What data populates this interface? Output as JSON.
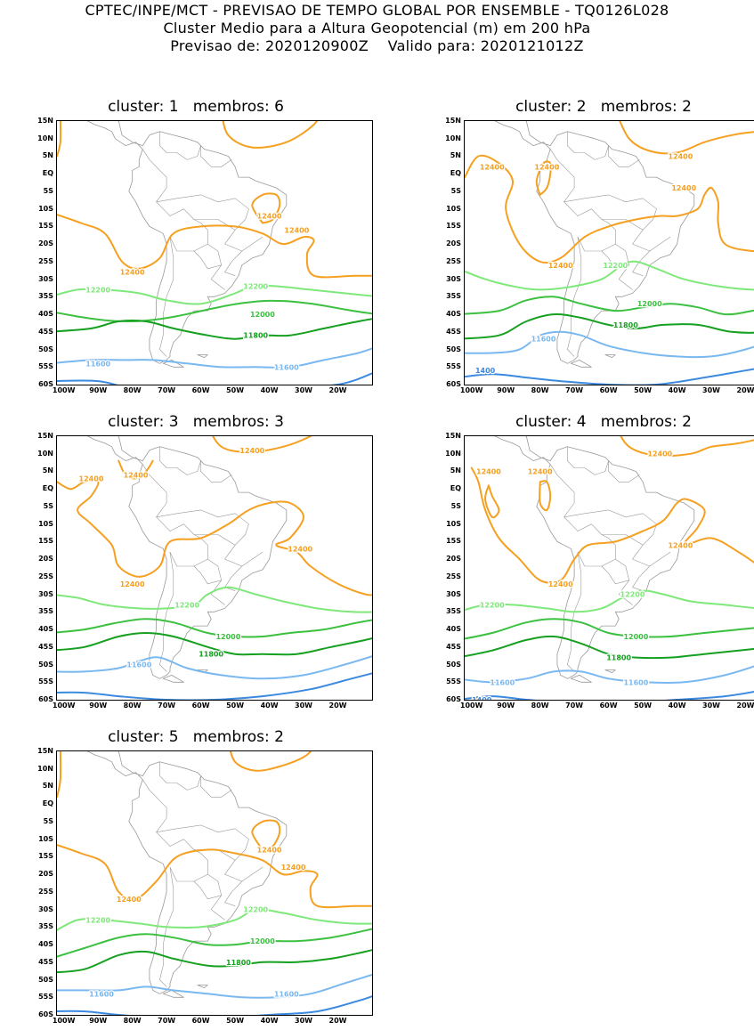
{
  "header": {
    "line1": "CPTEC/INPE/MCT - PREVISAO DE TEMPO GLOBAL POR ENSEMBLE - TQ0126L028",
    "line2": "Cluster Medio para a Altura Geopotencial (m) em 200 hPa",
    "line3": "Previsao de: 2020120900Z    Valido para: 2020121012Z"
  },
  "axes": {
    "lat_labels": [
      "15N",
      "10N",
      "5N",
      "EQ",
      "5S",
      "10S",
      "15S",
      "20S",
      "25S",
      "30S",
      "35S",
      "40S",
      "45S",
      "50S",
      "55S",
      "60S"
    ],
    "lon_labels": [
      "100W",
      "90W",
      "80W",
      "70W",
      "60W",
      "50W",
      "40W",
      "30W",
      "20W"
    ]
  },
  "colors": {
    "c12400": "#f5a020",
    "c12200": "#7fe87a",
    "c12000": "#3cc040",
    "c11800": "#16a020",
    "c11600": "#7ab8f0",
    "c11400": "#3c8ae0",
    "c11200": "#1a5ad0",
    "coast": "#999999"
  },
  "panels": [
    {
      "title": "cluster: 1   membros: 6",
      "labels": [
        {
          "text": "12400",
          "lon": -40,
          "lat": -12
        },
        {
          "text": "12400",
          "lon": -32,
          "lat": -16
        },
        {
          "text": "12400",
          "lon": -80,
          "lat": -28
        },
        {
          "text": "12200",
          "lon": -90,
          "lat": -33
        },
        {
          "text": "12200",
          "lon": -44,
          "lat": -32
        },
        {
          "text": "12000",
          "lon": -42,
          "lat": -40
        },
        {
          "text": "11800",
          "lon": -44,
          "lat": -46
        },
        {
          "text": "11600",
          "lon": -90,
          "lat": -54
        },
        {
          "text": "11600",
          "lon": -35,
          "lat": -55
        }
      ]
    },
    {
      "title": "cluster: 2   membros: 2",
      "labels": [
        {
          "text": "12400",
          "lon": -94,
          "lat": 2
        },
        {
          "text": "12400",
          "lon": -78,
          "lat": 2
        },
        {
          "text": "12400",
          "lon": -39,
          "lat": 5
        },
        {
          "text": "12400",
          "lon": -38,
          "lat": -4
        },
        {
          "text": "12400",
          "lon": -74,
          "lat": -26
        },
        {
          "text": "12200",
          "lon": -58,
          "lat": -26
        },
        {
          "text": "12000",
          "lon": -48,
          "lat": -37
        },
        {
          "text": "11800",
          "lon": -55,
          "lat": -43
        },
        {
          "text": "11600",
          "lon": -79,
          "lat": -47
        },
        {
          "text": "1400",
          "lon": -96,
          "lat": -56
        }
      ]
    },
    {
      "title": "cluster: 3   membros: 3",
      "labels": [
        {
          "text": "12400",
          "lon": -45,
          "lat": 11
        },
        {
          "text": "12400",
          "lon": -92,
          "lat": 3
        },
        {
          "text": "12400",
          "lon": -79,
          "lat": 4
        },
        {
          "text": "12400",
          "lon": -31,
          "lat": -17
        },
        {
          "text": "12400",
          "lon": -80,
          "lat": -27
        },
        {
          "text": "12200",
          "lon": -64,
          "lat": -33
        },
        {
          "text": "12000",
          "lon": -52,
          "lat": -42
        },
        {
          "text": "11800",
          "lon": -57,
          "lat": -47
        },
        {
          "text": "11600",
          "lon": -78,
          "lat": -50
        }
      ]
    },
    {
      "title": "cluster: 4   membros: 2",
      "labels": [
        {
          "text": "12400",
          "lon": -45,
          "lat": 10
        },
        {
          "text": "12400",
          "lon": -95,
          "lat": 5
        },
        {
          "text": "12400",
          "lon": -80,
          "lat": 5
        },
        {
          "text": "12400",
          "lon": -39,
          "lat": -16
        },
        {
          "text": "12400",
          "lon": -74,
          "lat": -27
        },
        {
          "text": "12200",
          "lon": -94,
          "lat": -33
        },
        {
          "text": "12200",
          "lon": -53,
          "lat": -30
        },
        {
          "text": "12000",
          "lon": -52,
          "lat": -42
        },
        {
          "text": "11800",
          "lon": -57,
          "lat": -48
        },
        {
          "text": "11600",
          "lon": -91,
          "lat": -55
        },
        {
          "text": "11600",
          "lon": -52,
          "lat": -55
        },
        {
          "text": "1400",
          "lon": -97,
          "lat": -60
        }
      ]
    },
    {
      "title": "cluster: 5   membros: 2",
      "labels": [
        {
          "text": "12400",
          "lon": -40,
          "lat": -13
        },
        {
          "text": "12400",
          "lon": -33,
          "lat": -18
        },
        {
          "text": "12400",
          "lon": -81,
          "lat": -27
        },
        {
          "text": "12200",
          "lon": -90,
          "lat": -33
        },
        {
          "text": "12200",
          "lon": -44,
          "lat": -30
        },
        {
          "text": "12000",
          "lon": -42,
          "lat": -39
        },
        {
          "text": "11800",
          "lon": -49,
          "lat": -45
        },
        {
          "text": "11600",
          "lon": -89,
          "lat": -54
        },
        {
          "text": "11600",
          "lon": -35,
          "lat": -54
        }
      ]
    }
  ]
}
